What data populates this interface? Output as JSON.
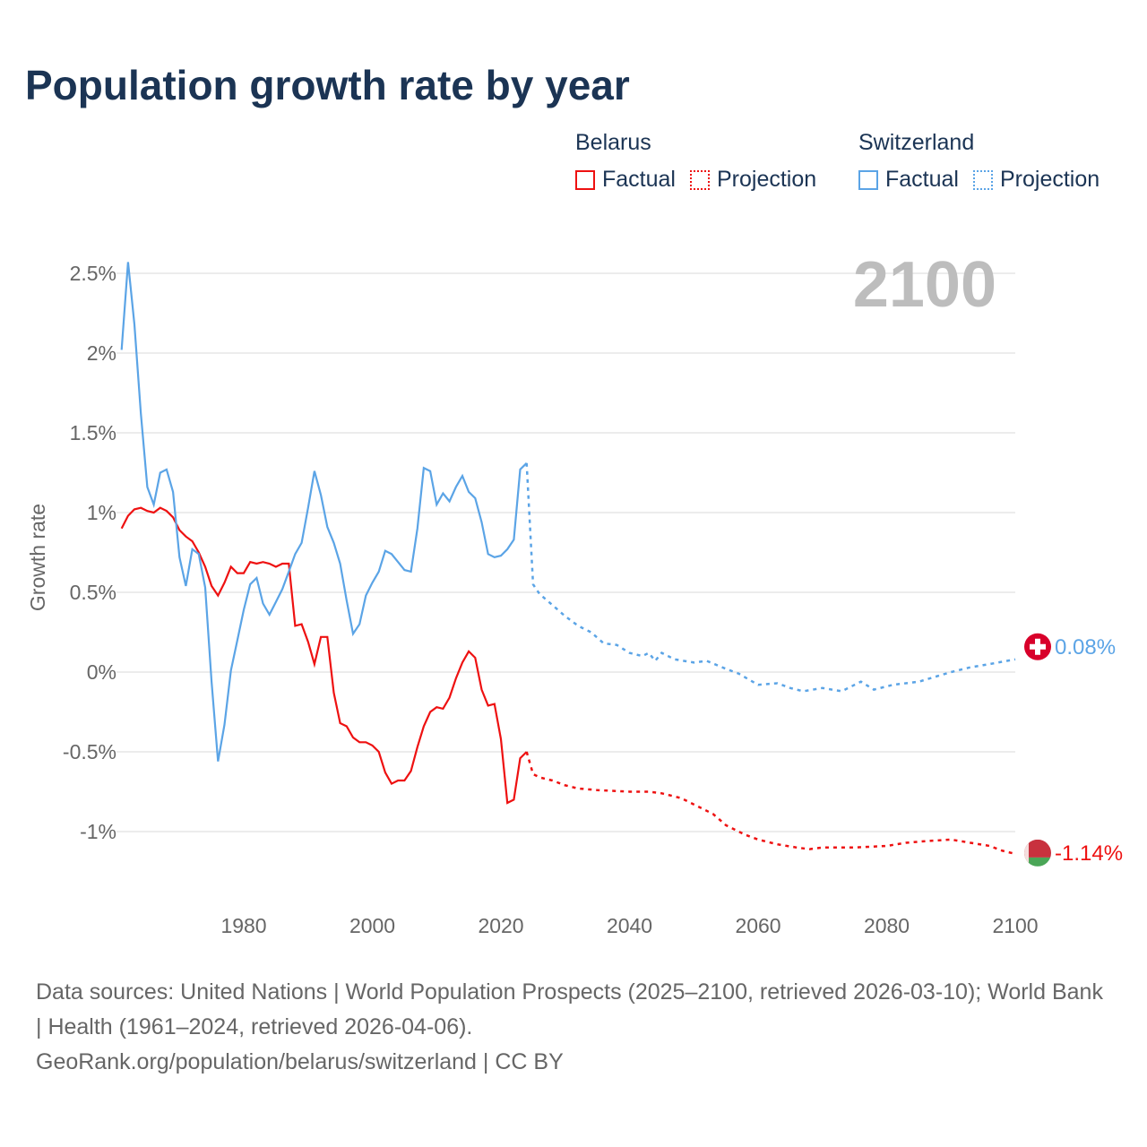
{
  "title": "Population growth rate by year",
  "legend": {
    "groups": [
      {
        "name": "Belarus",
        "factual": "Factual",
        "projection": "Projection",
        "color": "#ee1111"
      },
      {
        "name": "Switzerland",
        "factual": "Factual",
        "projection": "Projection",
        "color": "#5ba4e6"
      }
    ]
  },
  "year_label": "2100",
  "footer": {
    "sources": "Data sources: United Nations | World Population Prospects (2025–2100, retrieved 2026-03-10); World Bank | Health (1961–2024, retrieved 2026-04-06).",
    "credit": "GeoRank.org/population/belarus/switzerland | CC BY"
  },
  "chart_data": {
    "type": "line",
    "title": "Population growth rate by year",
    "xlabel": "",
    "ylabel": "Growth rate",
    "xlim": [
      1961,
      2100
    ],
    "ylim": [
      -1.4,
      2.65
    ],
    "xticks": [
      1980,
      2000,
      2020,
      2040,
      2060,
      2080,
      2100
    ],
    "yticks": [
      -1,
      -0.5,
      0,
      0.5,
      1,
      1.5,
      2,
      2.5
    ],
    "ytick_labels": [
      "-1%",
      "-0.5%",
      "0%",
      "0.5%",
      "1%",
      "1.5%",
      "2%",
      "2.5%"
    ],
    "grid": true,
    "legend_position": "top-right",
    "series": [
      {
        "name": "Belarus",
        "color": "#ee1111",
        "end_label": "-1.14%",
        "factual": {
          "x": [
            1961,
            1962,
            1963,
            1964,
            1965,
            1966,
            1967,
            1968,
            1969,
            1970,
            1971,
            1972,
            1973,
            1974,
            1975,
            1976,
            1977,
            1978,
            1979,
            1980,
            1981,
            1982,
            1983,
            1984,
            1985,
            1986,
            1987,
            1988,
            1989,
            1990,
            1991,
            1992,
            1993,
            1994,
            1995,
            1996,
            1997,
            1998,
            1999,
            2000,
            2001,
            2002,
            2003,
            2004,
            2005,
            2006,
            2007,
            2008,
            2009,
            2010,
            2011,
            2012,
            2013,
            2014,
            2015,
            2016,
            2017,
            2018,
            2019,
            2020,
            2021,
            2022,
            2023,
            2024
          ],
          "y": [
            0.9,
            0.98,
            1.02,
            1.03,
            1.01,
            1.0,
            1.03,
            1.01,
            0.97,
            0.89,
            0.85,
            0.82,
            0.75,
            0.66,
            0.54,
            0.48,
            0.56,
            0.66,
            0.62,
            0.62,
            0.69,
            0.68,
            0.69,
            0.68,
            0.66,
            0.68,
            0.68,
            0.29,
            0.3,
            0.19,
            0.05,
            0.22,
            0.22,
            -0.13,
            -0.32,
            -0.34,
            -0.41,
            -0.44,
            -0.44,
            -0.46,
            -0.5,
            -0.63,
            -0.7,
            -0.68,
            -0.68,
            -0.62,
            -0.47,
            -0.34,
            -0.25,
            -0.22,
            -0.23,
            -0.16,
            -0.04,
            0.06,
            0.13,
            0.09,
            -0.11,
            -0.21,
            -0.2,
            -0.42,
            -0.82,
            -0.8,
            -0.54,
            -0.5
          ]
        },
        "projection": {
          "x": [
            2024,
            2025,
            2026,
            2028,
            2030,
            2032,
            2035,
            2040,
            2043,
            2045,
            2048,
            2050,
            2053,
            2055,
            2058,
            2060,
            2063,
            2066,
            2068,
            2070,
            2075,
            2080,
            2083,
            2086,
            2090,
            2093,
            2096,
            2098,
            2100
          ],
          "y": [
            -0.5,
            -0.64,
            -0.66,
            -0.68,
            -0.71,
            -0.73,
            -0.74,
            -0.75,
            -0.75,
            -0.76,
            -0.79,
            -0.83,
            -0.89,
            -0.96,
            -1.02,
            -1.05,
            -1.08,
            -1.1,
            -1.11,
            -1.1,
            -1.1,
            -1.09,
            -1.07,
            -1.06,
            -1.05,
            -1.07,
            -1.09,
            -1.12,
            -1.14
          ]
        }
      },
      {
        "name": "Switzerland",
        "color": "#5ba4e6",
        "end_label": "0.08%",
        "factual": {
          "x": [
            1961,
            1962,
            1963,
            1964,
            1965,
            1966,
            1967,
            1968,
            1969,
            1970,
            1971,
            1972,
            1973,
            1974,
            1975,
            1976,
            1977,
            1978,
            1979,
            1980,
            1981,
            1982,
            1983,
            1984,
            1985,
            1986,
            1987,
            1988,
            1989,
            1990,
            1991,
            1992,
            1993,
            1994,
            1995,
            1996,
            1997,
            1998,
            1999,
            2000,
            2001,
            2002,
            2003,
            2004,
            2005,
            2006,
            2007,
            2008,
            2009,
            2010,
            2011,
            2012,
            2013,
            2014,
            2015,
            2016,
            2017,
            2018,
            2019,
            2020,
            2021,
            2022,
            2023,
            2024
          ],
          "y": [
            2.02,
            2.57,
            2.18,
            1.62,
            1.16,
            1.05,
            1.25,
            1.27,
            1.13,
            0.72,
            0.54,
            0.77,
            0.74,
            0.53,
            -0.06,
            -0.56,
            -0.33,
            0.01,
            0.2,
            0.39,
            0.55,
            0.59,
            0.43,
            0.36,
            0.44,
            0.52,
            0.63,
            0.74,
            0.81,
            1.03,
            1.26,
            1.11,
            0.91,
            0.81,
            0.68,
            0.45,
            0.24,
            0.3,
            0.48,
            0.56,
            0.63,
            0.76,
            0.74,
            0.69,
            0.64,
            0.63,
            0.9,
            1.28,
            1.26,
            1.05,
            1.12,
            1.07,
            1.16,
            1.23,
            1.13,
            1.09,
            0.94,
            0.74,
            0.72,
            0.73,
            0.77,
            0.83,
            1.27,
            1.31
          ]
        },
        "projection": {
          "x": [
            2024,
            2025,
            2026,
            2028,
            2030,
            2032,
            2034,
            2036,
            2038,
            2040,
            2042,
            2043,
            2044,
            2045,
            2047,
            2050,
            2052,
            2055,
            2057,
            2060,
            2063,
            2065,
            2067,
            2070,
            2073,
            2076,
            2078,
            2081,
            2085,
            2090,
            2093,
            2096,
            2100
          ],
          "y": [
            1.31,
            0.55,
            0.49,
            0.42,
            0.35,
            0.29,
            0.25,
            0.18,
            0.17,
            0.12,
            0.1,
            0.12,
            0.07,
            0.12,
            0.08,
            0.06,
            0.07,
            0.02,
            -0.01,
            -0.08,
            -0.07,
            -0.1,
            -0.12,
            -0.1,
            -0.12,
            -0.06,
            -0.11,
            -0.08,
            -0.06,
            0.0,
            0.03,
            0.05,
            0.08
          ]
        }
      }
    ]
  }
}
